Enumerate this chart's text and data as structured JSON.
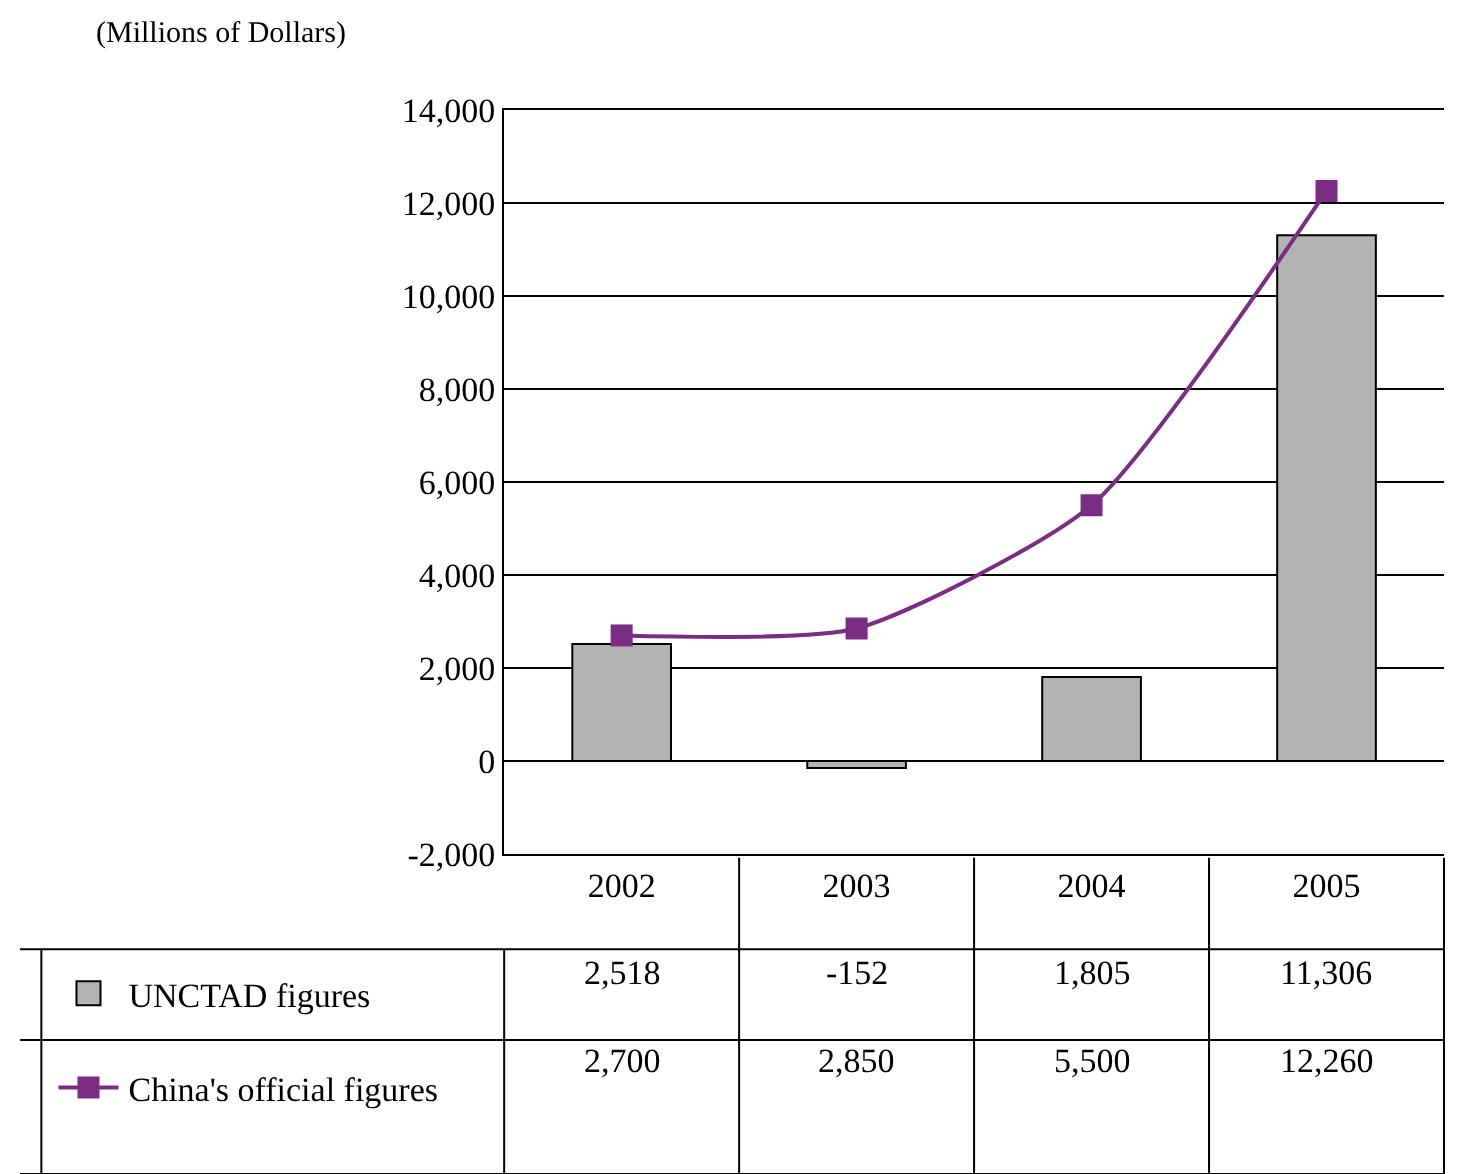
{
  "chart_data": {
    "type": "bar",
    "ylabel": "(Millions of Dollars)",
    "categories": [
      "2002",
      "2003",
      "2004",
      "2005"
    ],
    "series": [
      {
        "name": "UNCTAD figures",
        "color": "#b3b3b3",
        "values": [
          2518,
          -152,
          1805,
          11306
        ],
        "value_labels": [
          "2,518",
          "-152",
          "1,805",
          "11,306"
        ]
      },
      {
        "name": "China's official figures",
        "type": "line",
        "color": "#7b2c83",
        "values": [
          2700,
          2850,
          5500,
          12260
        ],
        "value_labels": [
          "2,700",
          "2,850",
          "5,500",
          "12,260"
        ],
        "marker": "square",
        "line_style": "solid"
      }
    ],
    "ylim": [
      -2000,
      14000
    ],
    "yticks": [
      {
        "value": -2000,
        "label": "-2,000"
      },
      0,
      {
        "value": 2000,
        "label": "2,000"
      },
      {
        "value": 4000,
        "label": "4,000"
      },
      {
        "value": 6000,
        "label": "6,000"
      },
      {
        "value": 8000,
        "label": "8,000"
      },
      {
        "value": 10000,
        "label": "10,000"
      },
      {
        "value": 12000,
        "label": "12,000"
      },
      {
        "value": 14000,
        "label": "14,000"
      }
    ],
    "grid": "y",
    "legend": "bottom left"
  }
}
